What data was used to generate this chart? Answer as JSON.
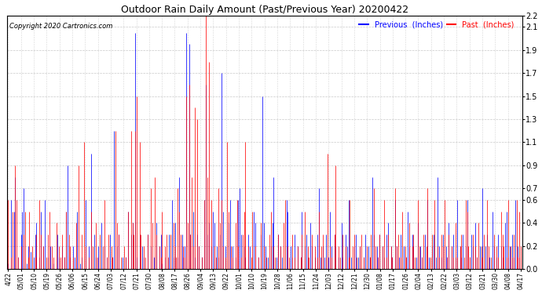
{
  "title": "Outdoor Rain Daily Amount (Past/Previous Year) 20200422",
  "copyright": "Copyright 2020 Cartronics.com",
  "legend_previous": "Previous  (Inches)",
  "legend_past": "Past  (Inches)",
  "previous_color": "#0000ff",
  "past_color": "#ff0000",
  "background_color": "#ffffff",
  "grid_color": "#bbbbbb",
  "ylim": [
    0.0,
    2.2
  ],
  "yticks": [
    0.0,
    0.2,
    0.4,
    0.6,
    0.7,
    0.9,
    1.1,
    1.3,
    1.5,
    1.7,
    1.9,
    2.1,
    2.2
  ],
  "figsize": [
    6.9,
    3.75
  ],
  "dpi": 100,
  "xtick_labels": [
    "4/22",
    "05/01",
    "05/10",
    "05/19",
    "05/26",
    "06/06",
    "06/15",
    "06/24",
    "07/03",
    "07/12",
    "07/21",
    "07/30",
    "08/08",
    "08/17",
    "08/26",
    "09/04",
    "09/13",
    "09/22",
    "10/01",
    "10/10",
    "10/19",
    "10/28",
    "11/06",
    "11/15",
    "11/24",
    "12/03",
    "12/12",
    "12/21",
    "12/30",
    "01/08",
    "01/17",
    "01/26",
    "02/04",
    "02/13",
    "02/22",
    "03/03",
    "03/12",
    "03/21",
    "03/30",
    "04/08",
    "04/17"
  ],
  "prev_rain": [
    0.05,
    0.0,
    0.6,
    0.0,
    0.5,
    0.8,
    0.0,
    0.1,
    0.0,
    0.3,
    0.5,
    0.7,
    0.0,
    0.05,
    0.2,
    0.0,
    0.15,
    0.0,
    0.1,
    0.3,
    0.4,
    0.0,
    0.1,
    0.5,
    0.0,
    0.2,
    0.6,
    0.0,
    0.1,
    0.0,
    0.2,
    0.0,
    0.05,
    0.0,
    0.0,
    0.3,
    0.1,
    0.0,
    0.2,
    0.0,
    0.1,
    0.5,
    0.9,
    0.0,
    0.1,
    0.0,
    0.2,
    0.1,
    0.0,
    0.5,
    0.0,
    0.05,
    0.1,
    0.0,
    0.0,
    0.6,
    0.0,
    0.2,
    0.0,
    1.0,
    0.0,
    0.3,
    0.1,
    0.0,
    0.2,
    0.0,
    0.4,
    0.0,
    0.2,
    0.0,
    0.1,
    0.0,
    0.3,
    0.0,
    0.1,
    1.2,
    0.0,
    0.2,
    0.3,
    0.0,
    0.0,
    0.1,
    0.0,
    0.1,
    0.0,
    0.5,
    0.0,
    0.3,
    0.4,
    0.0,
    2.05,
    0.1,
    0.0,
    0.3,
    0.0,
    0.2,
    0.1,
    0.0,
    0.0,
    0.3,
    0.0,
    0.2,
    0.0,
    0.1,
    0.0,
    0.4,
    0.0,
    0.2,
    0.3,
    0.05,
    0.0,
    0.1,
    0.0,
    0.0,
    0.3,
    0.0,
    0.6,
    0.1,
    0.4,
    0.0,
    0.1,
    0.8,
    0.0,
    0.3,
    0.1,
    0.2,
    2.05,
    0.0,
    1.95,
    0.3,
    0.0,
    0.5,
    0.1,
    0.0,
    0.3,
    0.2,
    0.0,
    0.1,
    0.0,
    0.6,
    1.6,
    0.3,
    0.4,
    0.0,
    0.2,
    0.5,
    0.4,
    0.0,
    0.2,
    0.1,
    0.3,
    1.7,
    0.5,
    0.0,
    0.2,
    0.0,
    0.4,
    0.6,
    0.0,
    0.2,
    0.0,
    0.1,
    0.0,
    0.6,
    0.7,
    0.3,
    0.0,
    0.2,
    0.1,
    0.0,
    0.3,
    0.2,
    0.0,
    0.0,
    0.5,
    0.4,
    0.0,
    0.1,
    0.0,
    0.3,
    1.5,
    0.4,
    0.2,
    0.0,
    0.1,
    0.0,
    0.2,
    0.4,
    0.8,
    0.0,
    0.1,
    0.3,
    0.0,
    0.2,
    0.1,
    0.0,
    0.0,
    0.6,
    0.5,
    0.0,
    0.2,
    0.1,
    0.0,
    0.3,
    0.0,
    0.2,
    0.0,
    0.1,
    0.5,
    0.0,
    0.2,
    0.3,
    0.1,
    0.0,
    0.4,
    0.2,
    0.0,
    0.1,
    0.0,
    0.3,
    0.7,
    0.1,
    0.0,
    0.2,
    0.1,
    0.3,
    0.0,
    0.1,
    0.5,
    0.2,
    0.0,
    0.3,
    0.2,
    0.0,
    0.1,
    0.0,
    0.4,
    0.1,
    0.0,
    0.3,
    0.2,
    0.6,
    0.0,
    0.1,
    0.0,
    0.2,
    0.3,
    0.0,
    0.1,
    0.2,
    0.0,
    0.0,
    0.1,
    0.3,
    0.0,
    0.2,
    0.1,
    0.0,
    0.8,
    0.3,
    0.0,
    0.2,
    0.1,
    0.3,
    0.0,
    0.2,
    0.1,
    0.0,
    0.3,
    0.4,
    0.0,
    0.2,
    0.1,
    0.0,
    0.6,
    0.2,
    0.0,
    0.1,
    0.3,
    0.0,
    0.2,
    0.0,
    0.1,
    0.5,
    0.2,
    0.0,
    0.3,
    0.2,
    0.0,
    0.1,
    0.4,
    0.0,
    0.2,
    0.1,
    0.0,
    0.3,
    0.0,
    0.6,
    0.1,
    0.0,
    0.2,
    0.3,
    0.0,
    0.1,
    0.8,
    0.2,
    0.0,
    0.1,
    0.3,
    0.0,
    0.2,
    0.1,
    0.4,
    0.0,
    0.2,
    0.3,
    0.0,
    0.1,
    0.6,
    0.0,
    0.2,
    0.1,
    0.3,
    0.0,
    0.2,
    0.6,
    0.0,
    0.1,
    0.3,
    0.2,
    0.0,
    0.4,
    0.1,
    0.0,
    0.2,
    0.1,
    0.7,
    0.0,
    0.2,
    0.3,
    0.0,
    0.1,
    0.0,
    0.5,
    0.2,
    0.0,
    0.1,
    0.3,
    0.0,
    0.2,
    0.1,
    0.0,
    0.4,
    0.5,
    0.1,
    0.2,
    0.0,
    0.3,
    0.1,
    0.6,
    0.0,
    0.2,
    0.1,
    0.0
  ],
  "past_rain": [
    0.6,
    0.0,
    0.1,
    0.5,
    0.0,
    0.9,
    0.6,
    0.1,
    0.0,
    0.2,
    0.0,
    0.3,
    0.5,
    0.0,
    0.1,
    0.5,
    0.0,
    0.2,
    0.0,
    0.1,
    0.3,
    0.0,
    0.6,
    0.3,
    0.0,
    0.2,
    0.0,
    0.1,
    0.3,
    0.5,
    0.0,
    0.2,
    0.1,
    0.0,
    0.4,
    0.0,
    0.2,
    0.1,
    0.3,
    0.0,
    0.1,
    0.5,
    0.0,
    0.3,
    0.2,
    0.0,
    0.1,
    0.0,
    0.4,
    0.0,
    0.9,
    0.0,
    0.3,
    0.0,
    1.1,
    0.2,
    0.0,
    0.1,
    0.0,
    0.5,
    0.2,
    0.0,
    0.4,
    0.1,
    0.0,
    0.3,
    0.0,
    0.2,
    0.6,
    0.0,
    0.1,
    0.3,
    0.0,
    0.2,
    0.1,
    0.0,
    1.2,
    0.4,
    0.3,
    0.0,
    0.1,
    0.0,
    0.2,
    0.1,
    0.0,
    0.5,
    0.0,
    1.2,
    0.4,
    0.3,
    1.2,
    1.5,
    0.0,
    1.1,
    0.3,
    0.0,
    0.2,
    0.1,
    0.0,
    0.3,
    0.0,
    0.7,
    0.4,
    0.0,
    0.8,
    0.3,
    0.0,
    0.2,
    0.1,
    0.5,
    0.0,
    0.2,
    0.3,
    0.1,
    0.0,
    0.3,
    0.0,
    0.4,
    0.2,
    0.1,
    0.7,
    0.5,
    0.3,
    0.0,
    0.2,
    0.1,
    1.5,
    0.4,
    1.6,
    0.3,
    0.8,
    0.2,
    1.4,
    0.0,
    1.3,
    0.2,
    0.0,
    0.1,
    0.0,
    0.6,
    2.25,
    0.8,
    1.8,
    0.0,
    0.6,
    0.0,
    0.2,
    0.1,
    0.0,
    0.7,
    0.4,
    0.6,
    0.2,
    0.0,
    0.1,
    1.1,
    0.5,
    0.0,
    0.2,
    0.1,
    0.0,
    0.4,
    0.6,
    0.2,
    0.0,
    0.1,
    0.3,
    0.5,
    1.1,
    0.0,
    0.2,
    0.0,
    0.1,
    0.5,
    0.0,
    0.2,
    0.0,
    0.1,
    0.0,
    0.4,
    0.0,
    0.2,
    0.0,
    0.1,
    0.0,
    0.3,
    0.5,
    0.0,
    0.2,
    0.1,
    0.0,
    0.3,
    0.0,
    0.2,
    0.0,
    0.4,
    0.6,
    0.0,
    0.2,
    0.1,
    0.0,
    0.3,
    0.0,
    0.1,
    0.0,
    0.2,
    0.0,
    0.1,
    0.3,
    0.0,
    0.5,
    0.0,
    0.2,
    0.1,
    0.0,
    0.3,
    0.0,
    0.2,
    0.0,
    0.1,
    0.5,
    0.0,
    0.2,
    0.3,
    0.0,
    0.1,
    1.0,
    0.0,
    0.2,
    0.1,
    0.0,
    0.3,
    0.9,
    0.0,
    0.2,
    0.1,
    0.0,
    0.3,
    0.0,
    0.2,
    0.0,
    0.1,
    0.6,
    0.0,
    0.2,
    0.3,
    0.0,
    0.1,
    0.0,
    0.2,
    0.3,
    0.0,
    0.1,
    0.0,
    0.2,
    0.0,
    0.1,
    0.3,
    0.0,
    0.7,
    0.2,
    0.0,
    0.1,
    0.3,
    0.0,
    0.2,
    0.6,
    0.0,
    0.1,
    0.3,
    0.0,
    0.2,
    0.1,
    0.0,
    0.7,
    0.2,
    0.3,
    0.0,
    0.1,
    0.5,
    0.0,
    0.2,
    0.1,
    0.0,
    0.4,
    0.0,
    0.2,
    0.3,
    0.1,
    0.0,
    0.6,
    0.2,
    0.0,
    0.1,
    0.3,
    0.0,
    0.2,
    0.7,
    0.0,
    0.1,
    0.3,
    0.0,
    0.6,
    0.0,
    0.2,
    0.1,
    0.0,
    0.3,
    0.2,
    0.6,
    0.0,
    0.1,
    0.3,
    0.0,
    0.2,
    0.1,
    0.0,
    0.4,
    0.1,
    0.0,
    0.2,
    0.3,
    0.0,
    0.1,
    0.6,
    0.5,
    0.2,
    0.1,
    0.0,
    0.3,
    0.0,
    0.2,
    0.1,
    0.4,
    0.0,
    0.2,
    0.1,
    0.3,
    0.0,
    0.6,
    0.2,
    0.0,
    0.1,
    0.0,
    0.3,
    0.0,
    0.2,
    0.1,
    0.0,
    0.5,
    0.3,
    0.2,
    0.0,
    0.1,
    0.6,
    0.0,
    0.2,
    0.1,
    0.3,
    0.0,
    0.6,
    0.1,
    0.5,
    0.2
  ]
}
